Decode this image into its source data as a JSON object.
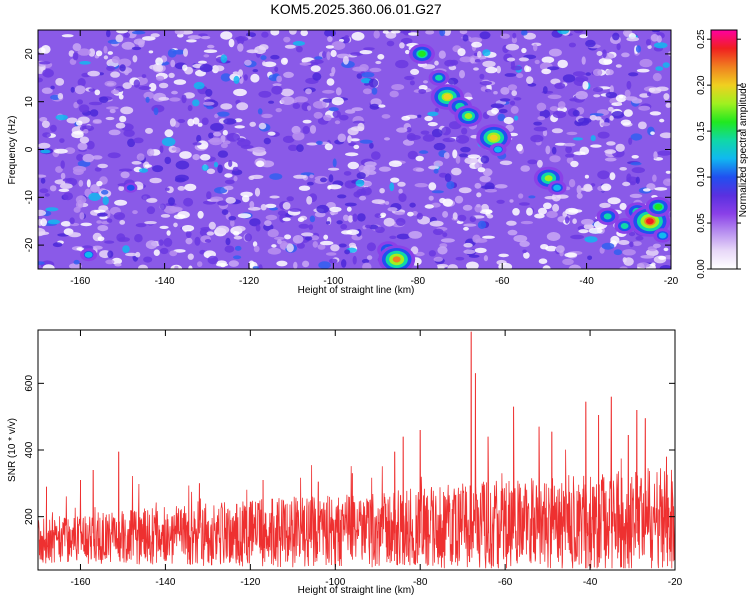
{
  "title": "KOM5.2025.360.06.01.G27",
  "colors": {
    "snr_line": "#ee3030",
    "colormap": [
      "#ffffff",
      "#e8d8f8",
      "#b890f0",
      "#8a40e8",
      "#5a30e0",
      "#2050f0",
      "#10b8f0",
      "#10d8a8",
      "#20e820",
      "#a0f020",
      "#f0d020",
      "#f08020",
      "#f02020",
      "#ff00a0"
    ]
  },
  "chart_data": [
    {
      "type": "heatmap",
      "title": "KOM5.2025.360.06.01.G27",
      "xlabel": "Height of straight line (km)",
      "ylabel": "Frequency (Hz)",
      "xlim": [
        -170,
        -20
      ],
      "ylim": [
        -25,
        25
      ],
      "xticks": [
        -160,
        -140,
        -120,
        -100,
        -80,
        -60,
        -40,
        -20
      ],
      "yticks": [
        -20,
        -10,
        0,
        10,
        20
      ],
      "colorbar": {
        "label": "Normalized spectral amplitude",
        "range": [
          0,
          0.26
        ],
        "ticks": [
          "0.00",
          "0.05",
          "0.10",
          "0.15",
          "0.20",
          "0.25"
        ]
      },
      "hotspots": [
        {
          "x": -79,
          "y": 20,
          "amp": 0.16
        },
        {
          "x": -75,
          "y": 15,
          "amp": 0.13
        },
        {
          "x": -73,
          "y": 11,
          "amp": 0.2
        },
        {
          "x": -70,
          "y": 9,
          "amp": 0.15
        },
        {
          "x": -68,
          "y": 7,
          "amp": 0.17
        },
        {
          "x": -62,
          "y": 2.5,
          "amp": 0.21
        },
        {
          "x": -61,
          "y": 0,
          "amp": 0.11
        },
        {
          "x": -49,
          "y": -6,
          "amp": 0.18
        },
        {
          "x": -47,
          "y": -8,
          "amp": 0.12
        },
        {
          "x": -35,
          "y": -14,
          "amp": 0.14
        },
        {
          "x": -31,
          "y": -16,
          "amp": 0.13
        },
        {
          "x": -28,
          "y": -13,
          "amp": 0.15
        },
        {
          "x": -25,
          "y": -15,
          "amp": 0.24
        },
        {
          "x": -23,
          "y": -12,
          "amp": 0.16
        },
        {
          "x": -22,
          "y": -18,
          "amp": 0.12
        },
        {
          "x": -87,
          "y": -21,
          "amp": 0.14
        },
        {
          "x": -85,
          "y": -23,
          "amp": 0.22
        },
        {
          "x": -158,
          "y": -22,
          "amp": 0.11
        },
        {
          "x": -148,
          "y": -8,
          "amp": 0.09
        }
      ]
    },
    {
      "type": "line",
      "xlabel": "Height of straight line (km)",
      "ylabel": "SNR (10 * v/v)",
      "xlim": [
        -170,
        -20
      ],
      "ylim": [
        40,
        760
      ],
      "xticks": [
        -160,
        -140,
        -120,
        -100,
        -80,
        -60,
        -40,
        -20
      ],
      "yticks": [
        200,
        400,
        600
      ],
      "peaks": [
        {
          "x": -168,
          "y": 290
        },
        {
          "x": -160,
          "y": 310
        },
        {
          "x": -157,
          "y": 340
        },
        {
          "x": -151,
          "y": 395
        },
        {
          "x": -132,
          "y": 300
        },
        {
          "x": -117,
          "y": 310
        },
        {
          "x": -104,
          "y": 305
        },
        {
          "x": -96,
          "y": 330
        },
        {
          "x": -86,
          "y": 395
        },
        {
          "x": -84,
          "y": 440
        },
        {
          "x": -80,
          "y": 460
        },
        {
          "x": -68,
          "y": 755
        },
        {
          "x": -67,
          "y": 630
        },
        {
          "x": -64,
          "y": 440
        },
        {
          "x": -58,
          "y": 530
        },
        {
          "x": -52,
          "y": 470
        },
        {
          "x": -49,
          "y": 455
        },
        {
          "x": -41,
          "y": 545
        },
        {
          "x": -38,
          "y": 505
        },
        {
          "x": -35,
          "y": 560
        },
        {
          "x": -31,
          "y": 445
        },
        {
          "x": -29,
          "y": 520
        },
        {
          "x": -27,
          "y": 495
        },
        {
          "x": -22,
          "y": 380
        }
      ]
    }
  ]
}
